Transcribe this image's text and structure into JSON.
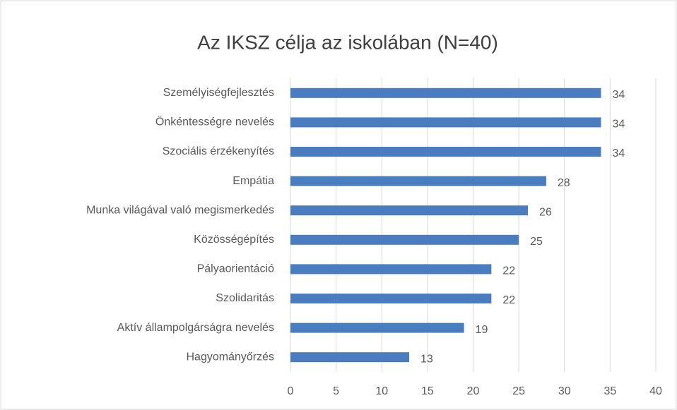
{
  "chart_data": {
    "type": "barh",
    "title": "Az IKSZ célja az iskolában (N=40)",
    "categories": [
      "Személyiségfejlesztés",
      "Önkéntességre nevelés",
      "Szociális érzékenyítés",
      "Empátia",
      "Munka világával való megismerkedés",
      "Közösségépítés",
      "Pályaorientáció",
      "Szolidaritás",
      "Aktív állampolgárságra nevelés",
      "Hagyományőrzés"
    ],
    "values": [
      34,
      34,
      34,
      28,
      26,
      25,
      22,
      22,
      19,
      13
    ],
    "color": "#4a7dbf",
    "xlim": [
      0,
      40
    ],
    "xticks": [
      0,
      5,
      10,
      15,
      20,
      25,
      30,
      35,
      40
    ],
    "grid": true
  }
}
